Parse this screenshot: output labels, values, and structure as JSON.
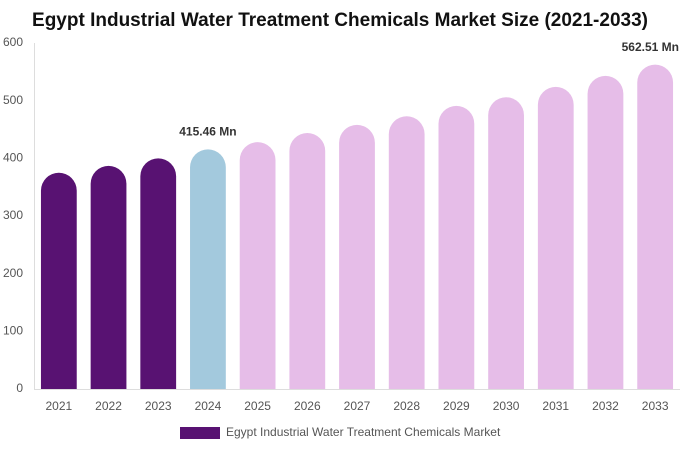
{
  "chart_data": {
    "type": "bar",
    "title": "Egypt Industrial Water Treatment Chemicals Market Size (2021-2033)",
    "categories": [
      "2021",
      "2022",
      "2023",
      "2024",
      "2025",
      "2026",
      "2027",
      "2028",
      "2029",
      "2030",
      "2031",
      "2032",
      "2033"
    ],
    "series": [
      {
        "name": "Egypt Industrial Water Treatment Chemicals Market",
        "color": "#581272",
        "values": [
          375,
          387,
          400,
          415.46,
          428,
          444,
          458,
          473,
          491,
          506,
          524,
          543,
          562.51
        ],
        "value_labels": [
          null,
          null,
          null,
          "415.46 Mn",
          null,
          null,
          null,
          null,
          null,
          null,
          null,
          null,
          "562.51 Mn"
        ],
        "colors": [
          "#581272",
          "#581272",
          "#581272",
          "#a3c9dd",
          "#e6bde8",
          "#e6bde8",
          "#e6bde8",
          "#e6bde8",
          "#e6bde8",
          "#e6bde8",
          "#e6bde8",
          "#e6bde8",
          "#e6bde8"
        ]
      }
    ],
    "ylim": [
      0,
      600
    ],
    "yticks": [
      0,
      100,
      200,
      300,
      400,
      500,
      600
    ],
    "grid": false
  }
}
